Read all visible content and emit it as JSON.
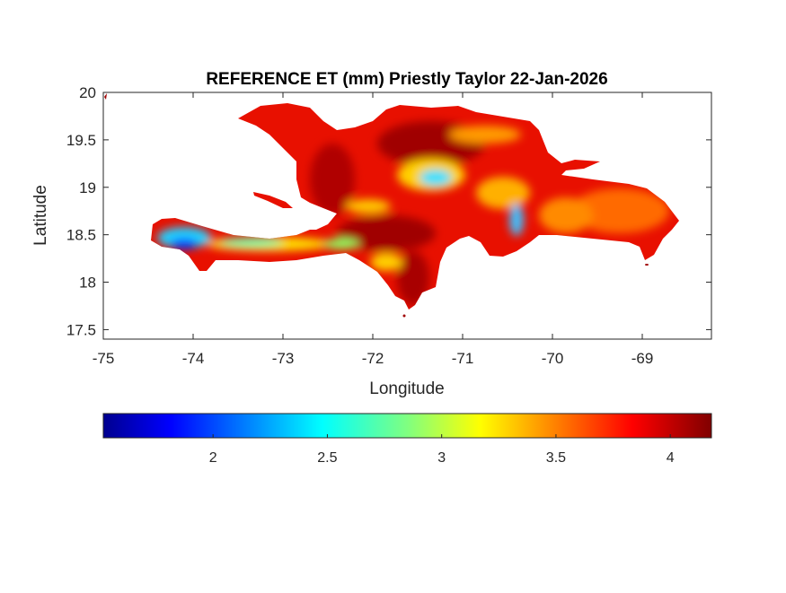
{
  "chart_data": {
    "type": "heatmap",
    "title": "REFERENCE ET (mm) Priestly Taylor 22-Jan-2026",
    "xlabel": "Longitude",
    "ylabel": "Latitude",
    "xlim": [
      -75,
      -68.23
    ],
    "ylim": [
      17.4,
      20
    ],
    "xticks": [
      -75,
      -74,
      -73,
      -72,
      -71,
      -70,
      -69
    ],
    "xtick_labels": [
      "-75",
      "-74",
      "-73",
      "-72",
      "-71",
      "-70",
      "-69"
    ],
    "yticks": [
      17.5,
      18,
      18.5,
      19,
      19.5,
      20
    ],
    "ytick_labels": [
      "17.5",
      "18",
      "18.5",
      "19",
      "19.5",
      "20"
    ],
    "colormap": "jet",
    "colorbar": {
      "location": "bottom",
      "range": [
        1.52,
        4.18
      ],
      "ticks": [
        2,
        2.5,
        3,
        3.5,
        4
      ],
      "tick_labels": [
        "2",
        "2.5",
        "3",
        "3.5",
        "4"
      ]
    },
    "summary": "Hispaniola: mostly 3.6–4.2 mm; low values ~1.6–2.6 mm on southwest Haiti peninsula and central highlands"
  }
}
